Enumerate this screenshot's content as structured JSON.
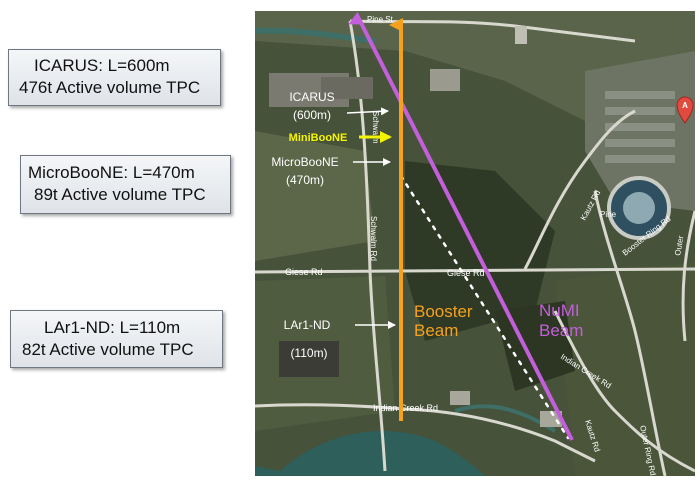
{
  "boxes": {
    "icarus": {
      "line1": "ICARUS: L=600m",
      "line2": "476t Active volume TPC"
    },
    "microboone": {
      "line1": "MicroBooNE: L=470m",
      "line2": "89t Active volume TPC"
    },
    "lar1nd": {
      "line1": "LAr1-ND: L=110m",
      "line2": "82t Active volume TPC"
    }
  },
  "map": {
    "detectors": {
      "icarus": {
        "name": "ICARUS",
        "distance": "(600m)"
      },
      "miniboone": {
        "name": "MiniBooNE"
      },
      "microboone": {
        "name": "MicroBooNE",
        "distance": "(470m)"
      },
      "lar1nd": {
        "name": "LAr1-ND",
        "distance": "(110m)"
      }
    },
    "beams": {
      "booster": {
        "line1": "Booster",
        "line2": "Beam",
        "color": "#f5a11c"
      },
      "numi": {
        "line1": "NuMI",
        "line2": "Beam",
        "color": "#c45fdc"
      }
    },
    "roads": {
      "pine_st": "Pine St",
      "giese_rd_west": "Giese Rd",
      "giese_rd_east": "Giese Rd",
      "schwalm_rd": "Schwalm Rd",
      "schwalm_rd_north": "Schwalm",
      "indian_creek_rd_south": "Indian Creek Rd",
      "indian_creek_rd_east": "Indian Creek Rd",
      "kautz_rd_north": "Kautz Rd",
      "kautz_rd_south": "Kautz Rd",
      "booster_ring_rd": "Booster Ring Rd",
      "outer_ring_rd": "Outer Ring Rd",
      "outer_ring_rd_north": "Outer",
      "pine": "Pine"
    },
    "marker": {
      "label": "A",
      "color": "#e04a3f"
    },
    "colors": {
      "miniboone_arrow": "#f4f400",
      "label_arrow": "#ffffff",
      "dotted_line": "#ffffff"
    }
  }
}
